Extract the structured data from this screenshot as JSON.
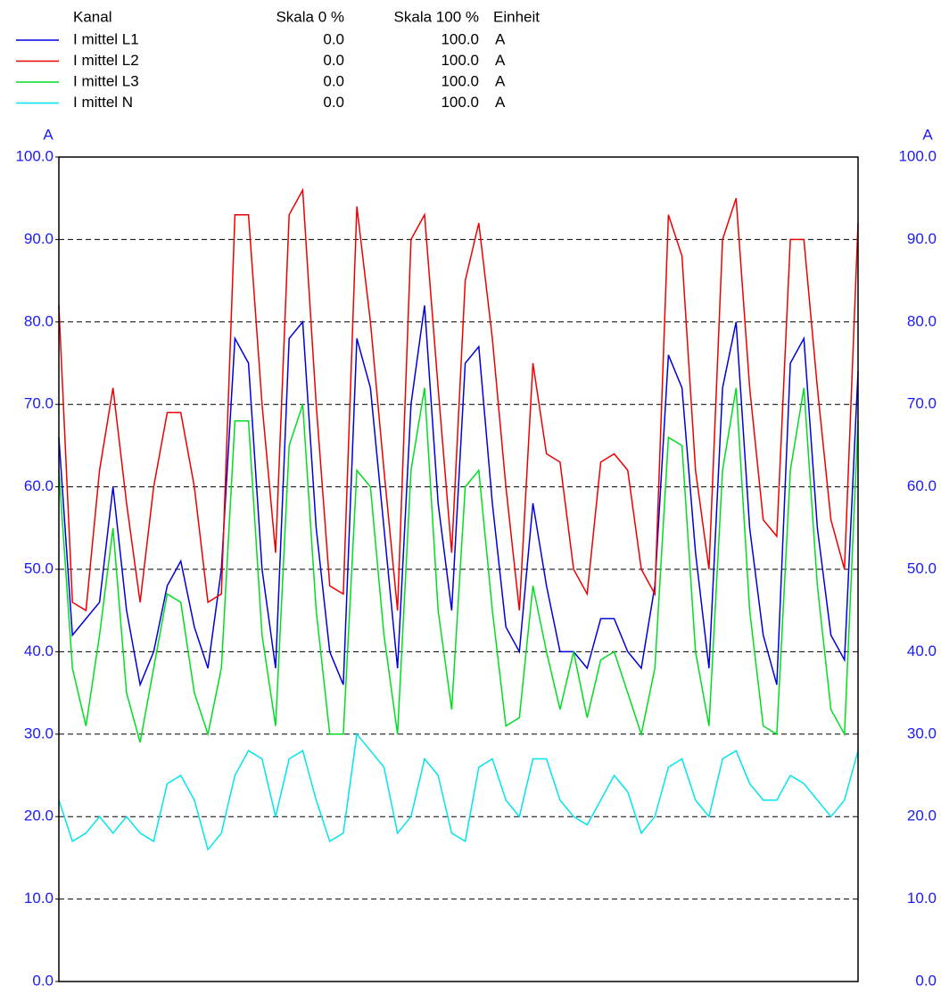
{
  "chart_data": {
    "type": "line",
    "legend_headers": [
      "Kanal",
      "Skala 0 %",
      "Skala 100 %",
      "Einheit"
    ],
    "y_label": "A",
    "ylim": [
      0,
      100
    ],
    "yticks": [
      {
        "value": 0,
        "label": "0.0"
      },
      {
        "value": 10,
        "label": "10.0"
      },
      {
        "value": 20,
        "label": "20.0"
      },
      {
        "value": 30,
        "label": "30.0"
      },
      {
        "value": 40,
        "label": "40.0"
      },
      {
        "value": 50,
        "label": "50.0"
      },
      {
        "value": 60,
        "label": "60.0"
      },
      {
        "value": 70,
        "label": "70.0"
      },
      {
        "value": 80,
        "label": "80.0"
      },
      {
        "value": 90,
        "label": "90.0"
      },
      {
        "value": 100,
        "label": "100.0"
      }
    ],
    "grid": true,
    "axis_color": "#1a1aff",
    "series": [
      {
        "name": "I mittel L1",
        "color": "#0000dd",
        "scale_0": "0.0",
        "scale_100": "100.0",
        "unit": "A",
        "values": [
          66,
          42,
          44,
          46,
          60,
          45,
          36,
          40,
          48,
          51,
          43,
          38,
          50,
          78,
          75,
          50,
          38,
          78,
          80,
          55,
          40,
          36,
          78,
          72,
          55,
          38,
          70,
          82,
          58,
          45,
          75,
          77,
          58,
          43,
          40,
          58,
          48,
          40,
          40,
          38,
          44,
          44,
          40,
          38,
          48,
          76,
          72,
          52,
          38,
          72,
          80,
          55,
          42,
          36,
          75,
          78,
          55,
          42,
          39,
          74
        ]
      },
      {
        "name": "I mittel L2",
        "color": "#ee0000",
        "scale_0": "0.0",
        "scale_100": "100.0",
        "unit": "A",
        "values": [
          82,
          46,
          45,
          62,
          72,
          58,
          46,
          60,
          69,
          69,
          60,
          46,
          47,
          93,
          93,
          70,
          52,
          93,
          96,
          70,
          48,
          47,
          94,
          80,
          62,
          45,
          90,
          93,
          72,
          52,
          85,
          92,
          78,
          60,
          45,
          75,
          64,
          63,
          50,
          47,
          63,
          64,
          62,
          50,
          47,
          93,
          88,
          62,
          50,
          90,
          95,
          72,
          56,
          54,
          90,
          90,
          72,
          56,
          50,
          92
        ]
      },
      {
        "name": "I mittel L3",
        "color": "#00dd22",
        "scale_0": "0.0",
        "scale_100": "100.0",
        "unit": "A",
        "values": [
          62,
          38,
          31,
          42,
          55,
          35,
          29,
          38,
          47,
          46,
          35,
          30,
          38,
          68,
          68,
          42,
          31,
          65,
          70,
          45,
          30,
          30,
          62,
          60,
          42,
          30,
          62,
          72,
          45,
          33,
          60,
          62,
          45,
          31,
          32,
          48,
          40,
          33,
          40,
          32,
          39,
          40,
          35,
          30,
          38,
          66,
          65,
          40,
          31,
          62,
          72,
          45,
          31,
          30,
          62,
          72,
          48,
          33,
          30,
          68
        ]
      },
      {
        "name": "I mittel N",
        "color": "#00e5ee",
        "scale_0": "0.0",
        "scale_100": "100.0",
        "unit": "A",
        "values": [
          22,
          17,
          18,
          20,
          18,
          20,
          18,
          17,
          24,
          25,
          22,
          16,
          18,
          25,
          28,
          27,
          20,
          27,
          28,
          22,
          17,
          18,
          30,
          28,
          26,
          18,
          20,
          27,
          25,
          18,
          17,
          26,
          27,
          22,
          20,
          27,
          27,
          22,
          20,
          19,
          22,
          25,
          23,
          18,
          20,
          26,
          27,
          22,
          20,
          27,
          28,
          24,
          22,
          22,
          25,
          24,
          22,
          20,
          22,
          28
        ]
      }
    ]
  }
}
